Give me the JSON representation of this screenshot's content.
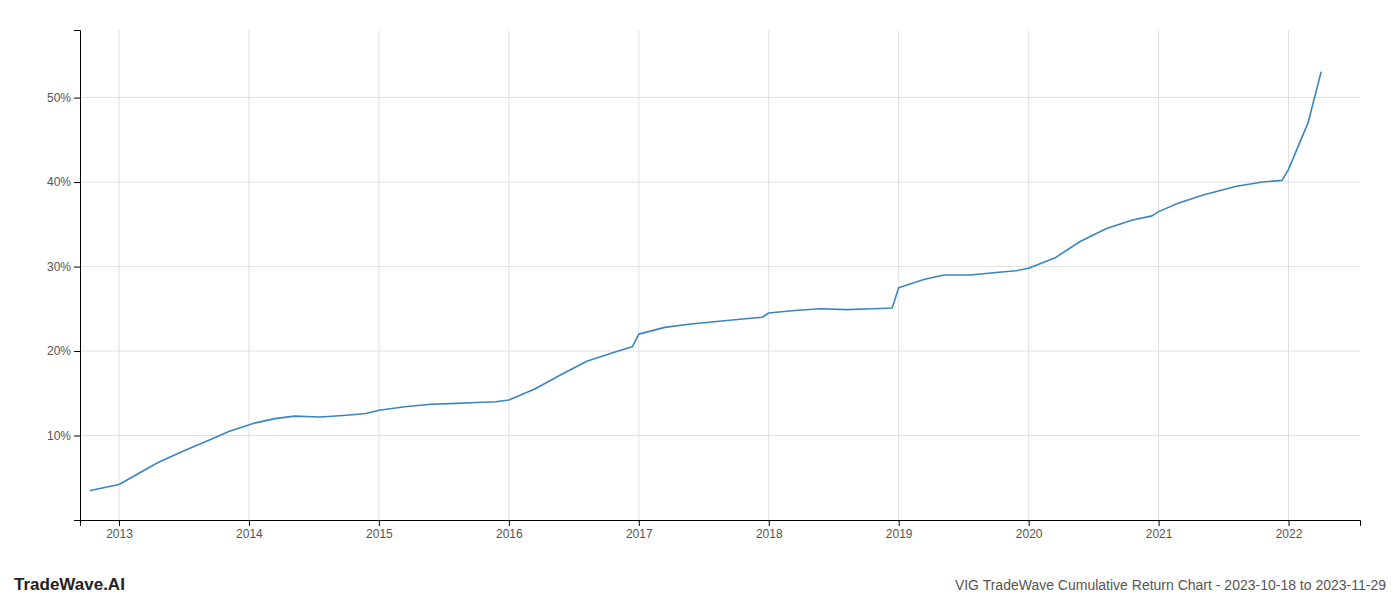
{
  "chart_data": {
    "type": "line",
    "title": "VIG TradeWave Cumulative Return Chart - 2023-10-18 to 2023-11-29",
    "annotations": [
      "TradeWave.AI"
    ],
    "color": "#3a85c0",
    "grid": true,
    "x": [
      2012.78,
      2013.0,
      2013.15,
      2013.3,
      2013.5,
      2013.7,
      2013.85,
      2013.95,
      2014.05,
      2014.2,
      2014.35,
      2014.55,
      2014.75,
      2014.9,
      2015.0,
      2015.2,
      2015.4,
      2015.6,
      2015.75,
      2015.9,
      2016.0,
      2016.2,
      2016.4,
      2016.6,
      2016.8,
      2016.95,
      2017.0,
      2017.2,
      2017.4,
      2017.6,
      2017.8,
      2017.95,
      2018.0,
      2018.2,
      2018.4,
      2018.6,
      2018.8,
      2018.95,
      2019.0,
      2019.2,
      2019.35,
      2019.55,
      2019.75,
      2019.9,
      2020.0,
      2020.2,
      2020.4,
      2020.6,
      2020.8,
      2020.95,
      2021.0,
      2021.15,
      2021.35,
      2021.6,
      2021.8,
      2021.95,
      2022.0,
      2022.15,
      2022.25
    ],
    "values": [
      3.5,
      4.2,
      5.5,
      6.8,
      8.2,
      9.5,
      10.5,
      11.0,
      11.5,
      12.0,
      12.3,
      12.2,
      12.4,
      12.6,
      13.0,
      13.4,
      13.7,
      13.8,
      13.9,
      14.0,
      14.2,
      15.5,
      17.2,
      18.8,
      19.8,
      20.5,
      22.0,
      22.8,
      23.2,
      23.5,
      23.8,
      24.0,
      24.5,
      24.8,
      25.0,
      24.9,
      25.0,
      25.1,
      27.5,
      28.5,
      29.0,
      29.0,
      29.3,
      29.5,
      29.8,
      31.0,
      33.0,
      34.5,
      35.5,
      36.0,
      36.5,
      37.5,
      38.5,
      39.5,
      40.0,
      40.2,
      41.5,
      47.0,
      53.0
    ],
    "xlim": [
      2012.7,
      2022.55
    ],
    "xticks": [
      2013,
      2014,
      2015,
      2016,
      2017,
      2018,
      2019,
      2020,
      2021,
      2022
    ],
    "ylim": [
      0,
      58
    ],
    "yticks": [
      {
        "value": 10,
        "label": "10%"
      },
      {
        "value": 20,
        "label": "20%"
      },
      {
        "value": 30,
        "label": "30%"
      },
      {
        "value": 40,
        "label": "40%"
      },
      {
        "value": 50,
        "label": "50%"
      }
    ]
  }
}
